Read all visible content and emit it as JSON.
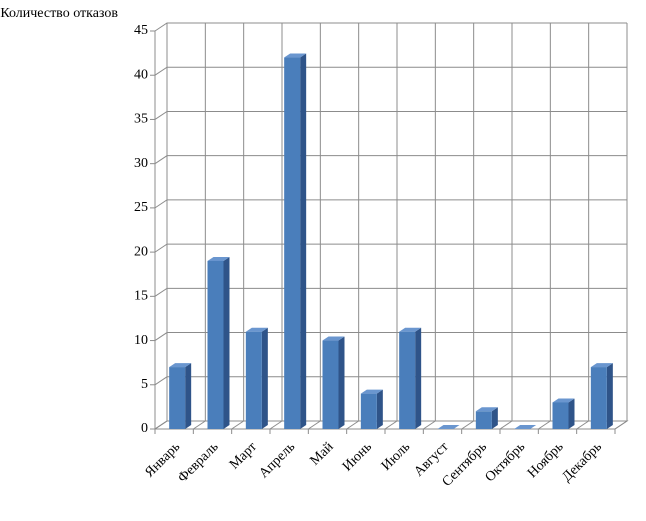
{
  "chart_data": {
    "type": "bar3d",
    "y_label": "Количество отказов",
    "categories": [
      "Январь",
      "Февраль",
      "Март",
      "Апрель",
      "Май",
      "Июнь",
      "Июль",
      "Август",
      "Сентябрь",
      "Октябрь",
      "Ноябрь",
      "Декабрь"
    ],
    "values": [
      7,
      19,
      11,
      42,
      10,
      4,
      11,
      0,
      2,
      0,
      3,
      7
    ],
    "color": "#4a7ebb",
    "ylim": [
      0,
      45
    ],
    "yticks": [
      0,
      5,
      10,
      15,
      20,
      25,
      30,
      35,
      40,
      45
    ],
    "grid": true
  }
}
